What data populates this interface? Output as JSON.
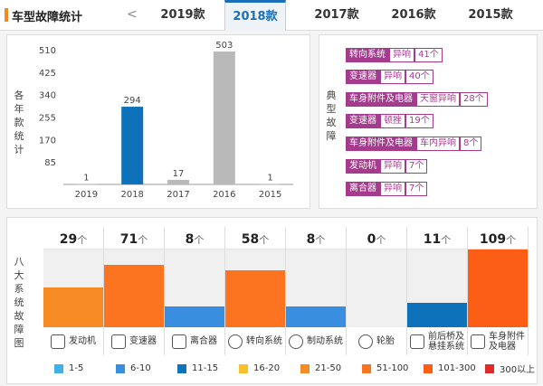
{
  "header": {
    "title": "车型故障统计",
    "prev_arrow": "<",
    "tabs": [
      {
        "label": "2019款",
        "active": false
      },
      {
        "label": "2018款",
        "active": true
      },
      {
        "label": "2017款",
        "active": false
      },
      {
        "label": "2016款",
        "active": false
      },
      {
        "label": "2015款",
        "active": false
      }
    ]
  },
  "chart_data": {
    "type": "bar",
    "ylabel": "各年款统计",
    "categories": [
      "2019",
      "2018",
      "2017",
      "2016",
      "2015"
    ],
    "values": [
      1,
      294,
      17,
      503,
      1
    ],
    "value_labels": [
      "1",
      "294",
      "17",
      "503",
      "1"
    ],
    "highlight_index": 1,
    "colors": {
      "highlight": "#0d72b9",
      "normal": "#b9b9b9"
    },
    "yticks": [
      85,
      170,
      255,
      340,
      425,
      510
    ],
    "ytick_labels": [
      "85",
      "170",
      "255",
      "340",
      "425",
      "510"
    ],
    "ylim": [
      0,
      520
    ],
    "grid": false
  },
  "faults": {
    "label": "典型故障",
    "items": [
      {
        "part": "转向系统",
        "type": "异响",
        "count": "41个"
      },
      {
        "part": "变速器",
        "type": "异响",
        "count": "40个"
      },
      {
        "part": "车身附件及电器",
        "type": "天窗异响",
        "count": "28个"
      },
      {
        "part": "变速器",
        "type": "顿挫",
        "count": "19个"
      },
      {
        "part": "车身附件及电器",
        "type": "车内异响",
        "count": "8个"
      },
      {
        "part": "发动机",
        "type": "异响",
        "count": "7个"
      },
      {
        "part": "离合器",
        "type": "异响",
        "count": "7个"
      }
    ]
  },
  "systems": {
    "label": "八大系统故障图",
    "unit": "个",
    "items": [
      {
        "name": "发动机",
        "count": "29",
        "value": 29,
        "color": "#f68b26",
        "icon": "engine-icon"
      },
      {
        "name": "变速器",
        "count": "71",
        "value": 71,
        "color": "#fc741f",
        "icon": "gearshift-icon"
      },
      {
        "name": "离合器",
        "count": "8",
        "value": 8,
        "color": "#3a8ee0",
        "icon": "clutch-icon"
      },
      {
        "name": "转向系统",
        "count": "58",
        "value": 58,
        "color": "#fc741f",
        "icon": "steering-wheel-icon"
      },
      {
        "name": "制动系统",
        "count": "8",
        "value": 8,
        "color": "#3a8ee0",
        "icon": "brake-disc-icon"
      },
      {
        "name": "轮胎",
        "count": "0",
        "value": 0,
        "color": "#3a8ee0",
        "icon": "tire-icon"
      },
      {
        "name": "前后桥及悬挂系统",
        "name_lines": [
          "前后桥及",
          "悬挂系统"
        ],
        "count": "11",
        "value": 11,
        "color": "#0d72b9",
        "icon": "axle-icon"
      },
      {
        "name": "车身附件及电器",
        "name_lines": [
          "车身附件",
          "及电器"
        ],
        "count": "109",
        "value": 109,
        "color": "#fc5e16",
        "icon": "car-body-icon"
      }
    ]
  },
  "legend": [
    {
      "label": "1-5",
      "color": "#40b0e8"
    },
    {
      "label": "6-10",
      "color": "#3a8ee0"
    },
    {
      "label": "11-15",
      "color": "#0d72b9"
    },
    {
      "label": "16-20",
      "color": "#f8c12a"
    },
    {
      "label": "21-50",
      "color": "#f68b26"
    },
    {
      "label": "51-100",
      "color": "#fc741f"
    },
    {
      "label": "101-300",
      "color": "#fc5e16"
    },
    {
      "label": "300以上",
      "color": "#e02a2a"
    }
  ]
}
